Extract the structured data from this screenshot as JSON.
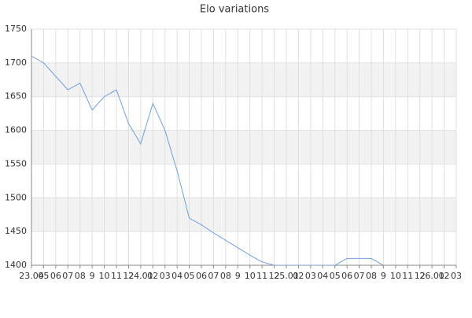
{
  "chart_data": {
    "type": "line",
    "title": "Elo variations",
    "categories": [
      "23.04",
      "05",
      "06",
      "07",
      "08",
      "9",
      "10",
      "11",
      "12",
      "24.01",
      "02",
      "03",
      "04",
      "05",
      "06",
      "07",
      "08",
      "9",
      "10",
      "11",
      "12",
      "25.01",
      "02",
      "03",
      "04",
      "05",
      "06",
      "07",
      "08",
      "9",
      "10",
      "11",
      "12",
      "26.01",
      "02",
      "03"
    ],
    "series": [
      {
        "name": "Elo",
        "color": "#6f9fe3",
        "values": [
          1710,
          1700,
          1680,
          1660,
          1670,
          1630,
          1650,
          1660,
          1610,
          1580,
          1640,
          1600,
          1540,
          1470,
          1460,
          1448,
          1437,
          1426,
          1415,
          1405,
          1400,
          1400,
          1400,
          1400,
          1400,
          1400,
          1410,
          1410,
          1410,
          1400,
          null,
          null,
          null,
          null,
          null,
          null
        ]
      }
    ],
    "ylim": [
      1400,
      1750
    ],
    "yticks": [
      1400,
      1450,
      1500,
      1550,
      1600,
      1650,
      1700,
      1750
    ],
    "grid": true
  }
}
